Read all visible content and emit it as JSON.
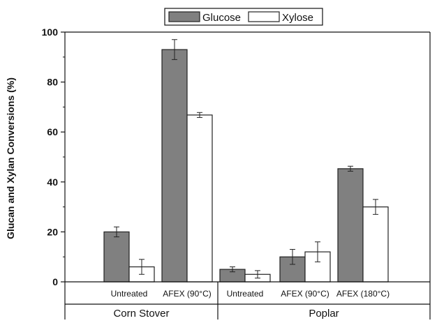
{
  "chart_data": {
    "type": "bar",
    "ylabel": "Glucan and Xylan Conversions (%)",
    "ylim": [
      0,
      100
    ],
    "yticks": [
      0,
      20,
      40,
      60,
      80,
      100
    ],
    "grid": false,
    "legend_position": "top-center",
    "categories": [
      "Untreated",
      "AFEX (90°C)",
      "Untreated",
      "AFEX (90°C)",
      "AFEX (180°C)"
    ],
    "groups": [
      {
        "label": "Corn Stover",
        "categories": [
          0,
          1
        ]
      },
      {
        "label": "Poplar",
        "categories": [
          2,
          3,
          4
        ]
      }
    ],
    "series": [
      {
        "name": "Glucose",
        "color": "#808080",
        "values": [
          20,
          93,
          5,
          10,
          45.3
        ],
        "errors": [
          2,
          4,
          1,
          3,
          1
        ]
      },
      {
        "name": "Xylose",
        "color": "#ffffff",
        "values": [
          6,
          66.8,
          3,
          12,
          30
        ],
        "errors": [
          3,
          1,
          1.5,
          4,
          3
        ]
      }
    ]
  }
}
